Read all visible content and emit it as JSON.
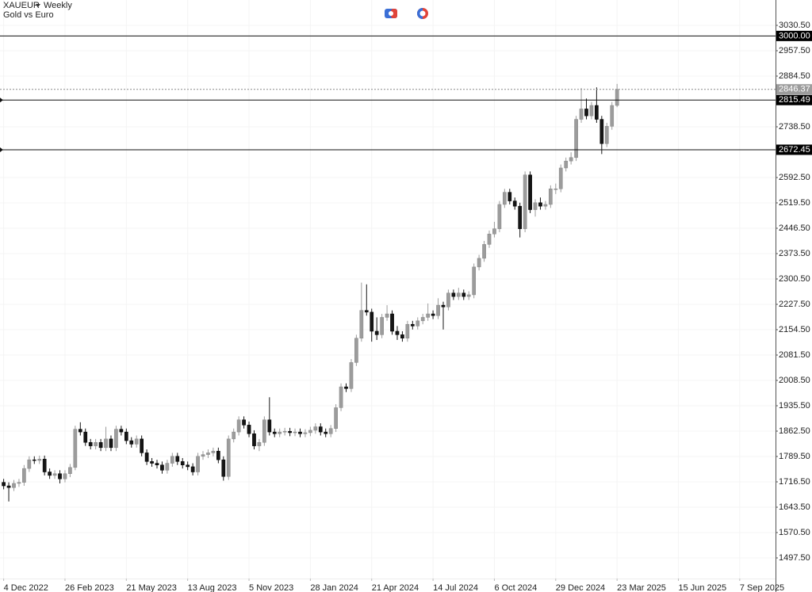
{
  "chart_data": {
    "type": "candlestick",
    "symbol": "XAUEUR",
    "timeframe": "Weekly",
    "subtitle": "Gold vs Euro",
    "x": [
      "2022-12-04",
      "2022-12-11",
      "2022-12-18",
      "2022-12-25",
      "2023-01-01",
      "2023-01-08",
      "2023-01-15",
      "2023-01-22",
      "2023-01-29",
      "2023-02-05",
      "2023-02-12",
      "2023-02-19",
      "2023-02-26",
      "2023-03-05",
      "2023-03-12",
      "2023-03-19",
      "2023-03-26",
      "2023-04-02",
      "2023-04-09",
      "2023-04-16",
      "2023-04-23",
      "2023-04-30",
      "2023-05-07",
      "2023-05-14",
      "2023-05-21",
      "2023-05-28",
      "2023-06-04",
      "2023-06-11",
      "2023-06-18",
      "2023-06-25",
      "2023-07-02",
      "2023-07-09",
      "2023-07-16",
      "2023-07-23",
      "2023-07-30",
      "2023-08-06",
      "2023-08-13",
      "2023-08-20",
      "2023-08-27",
      "2023-09-03",
      "2023-09-10",
      "2023-09-17",
      "2023-09-24",
      "2023-10-01",
      "2023-10-08",
      "2023-10-15",
      "2023-10-22",
      "2023-10-29",
      "2023-11-05",
      "2023-11-12",
      "2023-11-19",
      "2023-11-26",
      "2023-12-03",
      "2023-12-10",
      "2023-12-17",
      "2023-12-24",
      "2023-12-31",
      "2024-01-07",
      "2024-01-14",
      "2024-01-21",
      "2024-01-28",
      "2024-02-04",
      "2024-02-11",
      "2024-02-18",
      "2024-02-25",
      "2024-03-03",
      "2024-03-10",
      "2024-03-17",
      "2024-03-24",
      "2024-03-31",
      "2024-04-07",
      "2024-04-14",
      "2024-04-21",
      "2024-04-28",
      "2024-05-05",
      "2024-05-12",
      "2024-05-19",
      "2024-05-26",
      "2024-06-02",
      "2024-06-09",
      "2024-06-16",
      "2024-06-23",
      "2024-06-30",
      "2024-07-07",
      "2024-07-14",
      "2024-07-21",
      "2024-07-28",
      "2024-08-04",
      "2024-08-11",
      "2024-08-18",
      "2024-08-25",
      "2024-09-01",
      "2024-09-08",
      "2024-09-15",
      "2024-09-22",
      "2024-09-29",
      "2024-10-06",
      "2024-10-13",
      "2024-10-20",
      "2024-10-27",
      "2024-11-03",
      "2024-11-10",
      "2024-11-17",
      "2024-11-24",
      "2024-12-01",
      "2024-12-08",
      "2024-12-15",
      "2024-12-22",
      "2024-12-29",
      "2025-01-05",
      "2025-01-12",
      "2025-01-19",
      "2025-01-26",
      "2025-02-02",
      "2025-02-09",
      "2025-02-16",
      "2025-02-23",
      "2025-03-02",
      "2025-03-09",
      "2025-03-16",
      "2025-03-23"
    ],
    "open": [
      1715,
      1705,
      1700,
      1712,
      1715,
      1755,
      1780,
      1778,
      1782,
      1745,
      1735,
      1740,
      1725,
      1740,
      1758,
      1868,
      1860,
      1830,
      1820,
      1830,
      1815,
      1840,
      1815,
      1868,
      1860,
      1835,
      1825,
      1840,
      1800,
      1775,
      1770,
      1765,
      1750,
      1770,
      1790,
      1775,
      1765,
      1760,
      1745,
      1790,
      1795,
      1800,
      1805,
      1780,
      1732,
      1840,
      1860,
      1895,
      1880,
      1855,
      1820,
      1830,
      1895,
      1860,
      1855,
      1860,
      1862,
      1858,
      1860,
      1855,
      1858,
      1865,
      1875,
      1860,
      1855,
      1870,
      1930,
      1990,
      1985,
      2060,
      2130,
      2210,
      2205,
      2150,
      2140,
      2190,
      2200,
      2150,
      2140,
      2130,
      2170,
      2165,
      2180,
      2190,
      2200,
      2195,
      2225,
      2220,
      2260,
      2250,
      2260,
      2250,
      2255,
      2335,
      2360,
      2400,
      2430,
      2445,
      2515,
      2550,
      2525,
      2510,
      2445,
      2600,
      2500,
      2520,
      2510,
      2515,
      2560,
      2560,
      2620,
      2640,
      2650,
      2760,
      2790,
      2770,
      2800,
      2760,
      2690,
      2740,
      2800
    ],
    "high": [
      1725,
      1715,
      1722,
      1725,
      1765,
      1790,
      1790,
      1792,
      1792,
      1755,
      1750,
      1750,
      1750,
      1768,
      1878,
      1888,
      1870,
      1840,
      1840,
      1840,
      1875,
      1850,
      1878,
      1878,
      1870,
      1845,
      1850,
      1850,
      1810,
      1785,
      1780,
      1775,
      1780,
      1800,
      1800,
      1785,
      1775,
      1770,
      1800,
      1805,
      1810,
      1815,
      1815,
      1790,
      1850,
      1870,
      1905,
      1905,
      1890,
      1865,
      1840,
      1905,
      1960,
      1870,
      1870,
      1872,
      1872,
      1870,
      1870,
      1868,
      1875,
      1885,
      1885,
      1870,
      1880,
      1940,
      2000,
      2000,
      2070,
      2140,
      2290,
      2285,
      2215,
      2190,
      2200,
      2225,
      2210,
      2165,
      2150,
      2180,
      2180,
      2190,
      2200,
      2230,
      2210,
      2245,
      2235,
      2270,
      2270,
      2275,
      2270,
      2265,
      2345,
      2370,
      2410,
      2440,
      2465,
      2525,
      2560,
      2560,
      2535,
      2520,
      2610,
      2610,
      2530,
      2535,
      2525,
      2570,
      2575,
      2630,
      2650,
      2665,
      2770,
      2850,
      2820,
      2810,
      2852,
      2770,
      2750,
      2810,
      2862
    ],
    "low": [
      1695,
      1660,
      1690,
      1702,
      1705,
      1745,
      1768,
      1768,
      1735,
      1725,
      1725,
      1712,
      1715,
      1730,
      1750,
      1850,
      1820,
      1810,
      1810,
      1805,
      1805,
      1805,
      1805,
      1850,
      1825,
      1815,
      1815,
      1790,
      1765,
      1760,
      1755,
      1740,
      1740,
      1760,
      1765,
      1755,
      1750,
      1735,
      1735,
      1780,
      1785,
      1790,
      1770,
      1720,
      1722,
      1830,
      1850,
      1870,
      1845,
      1810,
      1805,
      1820,
      1850,
      1845,
      1845,
      1850,
      1848,
      1848,
      1845,
      1845,
      1848,
      1855,
      1850,
      1845,
      1845,
      1860,
      1920,
      1975,
      1975,
      2050,
      2120,
      2195,
      2120,
      2125,
      2130,
      2180,
      2140,
      2125,
      2120,
      2120,
      2155,
      2155,
      2170,
      2180,
      2185,
      2185,
      2155,
      2210,
      2240,
      2240,
      2240,
      2240,
      2245,
      2325,
      2350,
      2390,
      2420,
      2435,
      2505,
      2515,
      2500,
      2420,
      2435,
      2490,
      2480,
      2500,
      2500,
      2505,
      2545,
      2550,
      2610,
      2630,
      2640,
      2750,
      2760,
      2760,
      2750,
      2660,
      2680,
      2730,
      2795
    ],
    "close": [
      1705,
      1700,
      1712,
      1715,
      1755,
      1780,
      1778,
      1782,
      1745,
      1735,
      1740,
      1725,
      1740,
      1758,
      1868,
      1860,
      1830,
      1820,
      1830,
      1815,
      1840,
      1815,
      1868,
      1860,
      1835,
      1825,
      1840,
      1800,
      1775,
      1770,
      1765,
      1750,
      1770,
      1790,
      1775,
      1765,
      1760,
      1745,
      1790,
      1795,
      1800,
      1805,
      1780,
      1732,
      1840,
      1860,
      1895,
      1880,
      1855,
      1820,
      1830,
      1895,
      1860,
      1855,
      1860,
      1862,
      1858,
      1860,
      1855,
      1858,
      1865,
      1875,
      1860,
      1855,
      1870,
      1930,
      1990,
      1985,
      2060,
      2130,
      2210,
      2205,
      2150,
      2140,
      2190,
      2200,
      2150,
      2140,
      2130,
      2170,
      2165,
      2180,
      2190,
      2200,
      2195,
      2225,
      2220,
      2260,
      2250,
      2260,
      2250,
      2255,
      2335,
      2360,
      2400,
      2430,
      2445,
      2515,
      2550,
      2525,
      2510,
      2445,
      2600,
      2500,
      2520,
      2510,
      2515,
      2560,
      2560,
      2620,
      2640,
      2650,
      2760,
      2790,
      2770,
      2800,
      2760,
      2690,
      2740,
      2800,
      2846.37
    ],
    "up_color": "#9c9c9c",
    "down_color": "#151515",
    "xlim": [
      "2022-11-29",
      "2025-10-26"
    ],
    "xticks": [
      {
        "value": "2022-12-04",
        "label": "4 Dec 2022"
      },
      {
        "value": "2023-02-26",
        "label": "26 Feb 2023"
      },
      {
        "value": "2023-05-21",
        "label": "21 May 2023"
      },
      {
        "value": "2023-08-13",
        "label": "13 Aug 2023"
      },
      {
        "value": "2023-11-05",
        "label": "5 Nov 2023"
      },
      {
        "value": "2024-01-28",
        "label": "28 Jan 2024"
      },
      {
        "value": "2024-04-21",
        "label": "21 Apr 2024"
      },
      {
        "value": "2024-07-14",
        "label": "14 Jul 2024"
      },
      {
        "value": "2024-10-06",
        "label": "6 Oct 2024"
      },
      {
        "value": "2024-12-29",
        "label": "29 Dec 2024"
      },
      {
        "value": "2025-03-23",
        "label": "23 Mar 2025"
      },
      {
        "value": "2025-06-15",
        "label": "15 Jun 2025"
      },
      {
        "value": "2025-09-07",
        "label": "7 Sep 2025"
      }
    ],
    "ylim": [
      1438.2,
      3103.5
    ],
    "yticks": [
      {
        "value": 1497.5,
        "label": "1497.50"
      },
      {
        "value": 1570.5,
        "label": "1570.50"
      },
      {
        "value": 1643.5,
        "label": "1643.50"
      },
      {
        "value": 1716.5,
        "label": "1716.50"
      },
      {
        "value": 1789.5,
        "label": "1789.50"
      },
      {
        "value": 1862.5,
        "label": "1862.50"
      },
      {
        "value": 1935.5,
        "label": "1935.50"
      },
      {
        "value": 2008.5,
        "label": "2008.50"
      },
      {
        "value": 2081.5,
        "label": "2081.50"
      },
      {
        "value": 2154.5,
        "label": "2154.50"
      },
      {
        "value": 2227.5,
        "label": "2227.50"
      },
      {
        "value": 2300.5,
        "label": "2300.50"
      },
      {
        "value": 2373.5,
        "label": "2373.50"
      },
      {
        "value": 2446.5,
        "label": "2446.50"
      },
      {
        "value": 2519.5,
        "label": "2519.50"
      },
      {
        "value": 2592.5,
        "label": "2592.50"
      },
      {
        "value": 2738.5,
        "label": "2738.50"
      },
      {
        "value": 2884.5,
        "label": "2884.50"
      },
      {
        "value": 2957.5,
        "label": "2957.50"
      },
      {
        "value": 3030.5,
        "label": "3030.50"
      }
    ],
    "hlines": [
      {
        "value": 3000,
        "label": "3000.00"
      },
      2815.49,
      2672.45
    ],
    "grid": true
  }
}
